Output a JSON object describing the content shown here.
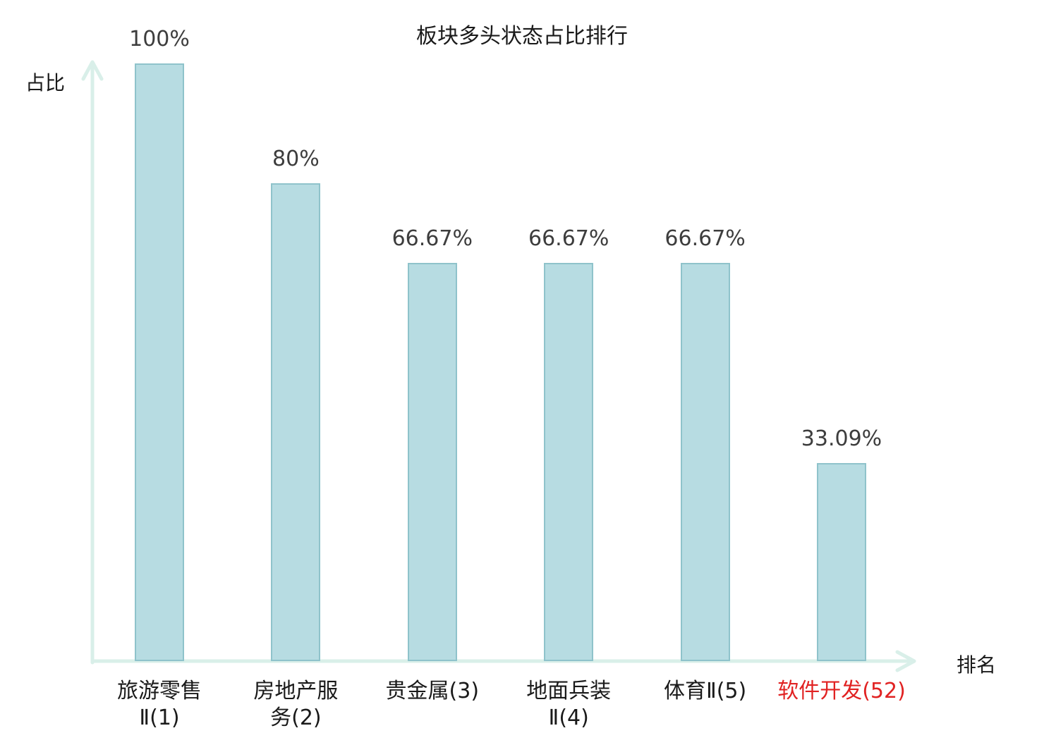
{
  "chart_data": {
    "type": "bar",
    "title": "板块多头状态占比排行",
    "ylabel": "占比",
    "xlabel": "排名",
    "categories": [
      "旅游零售\nⅡ(1)",
      "房地产服\n务(2)",
      "贵金属(3)",
      "地面兵装\nⅡ(4)",
      "体育Ⅱ(5)",
      "软件开发(52)"
    ],
    "values": [
      100,
      80,
      66.67,
      66.67,
      66.67,
      33.09
    ],
    "value_labels": [
      "100%",
      "80%",
      "66.67%",
      "66.67%",
      "66.67%",
      "33.09%"
    ],
    "highlight_index": 5,
    "ylim": [
      0,
      100
    ],
    "legend": "none",
    "grid": "off",
    "colors": {
      "bar_fill": "#b7dce2",
      "bar_border": "#8fc3cb",
      "axis": "#d9efe9",
      "value_text": "#3d3d3d",
      "category_text": "#1a1a1a",
      "highlight_text": "#e12222",
      "background": "#ffffff"
    }
  }
}
